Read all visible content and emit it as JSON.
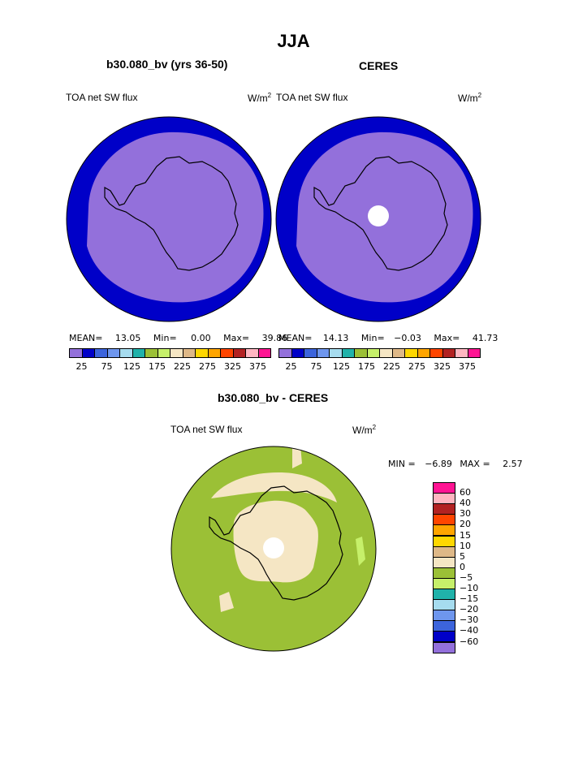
{
  "title": "JJA",
  "left_panel": {
    "case_title": "b30.080_bv (yrs 36-50)",
    "var_label": "TOA net SW flux",
    "unit_base": "W/m",
    "unit_exp": "2",
    "mean_label": "MEAN=",
    "mean_value": "13.05",
    "min_label": "Min=",
    "min_value": "0.00",
    "max_label": "Max=",
    "max_value": "39.86"
  },
  "right_panel": {
    "case_title": "CERES",
    "var_label": "TOA net SW flux",
    "unit_base": "W/m",
    "unit_exp": "2",
    "mean_label": "MEAN=",
    "mean_value": "14.13",
    "min_label": "Min=",
    "min_value": "−0.03",
    "max_label": "Max=",
    "max_value": "41.73"
  },
  "diff_panel": {
    "case_title": "b30.080_bv - CERES",
    "var_label": "TOA net SW flux",
    "unit_base": "W/m",
    "unit_exp": "2",
    "min_label": "MIN =",
    "min_value": "−6.89",
    "max_label": "MAX =",
    "max_value": "2.57"
  },
  "colors": {
    "outer_ring": "#0000c8",
    "interior": "#9370db",
    "diff_green": "#9bc036",
    "diff_tan": "#f5e6c4",
    "diff_light_green": "#c6f06a",
    "coast": "#000000"
  },
  "chart_data": [
    {
      "type": "heatmap",
      "title": "TOA net SW flux",
      "projection": "south-polar-stereographic",
      "colorbar": {
        "orientation": "horizontal",
        "colors": [
          "#9370db",
          "#0000c8",
          "#3c64dc",
          "#6e96ee",
          "#a6dcef",
          "#20b2aa",
          "#9bc036",
          "#c6f06a",
          "#f5e6c4",
          "#deb887",
          "#ffd700",
          "#ffa500",
          "#ff4500",
          "#b22222",
          "#ffb6c1",
          "#ff1493"
        ],
        "tick_labels": [
          "25",
          "75",
          "125",
          "175",
          "225",
          "275",
          "325",
          "375"
        ]
      },
      "stats": {
        "mean": 13.05,
        "min": 0.0,
        "max": 39.86
      }
    },
    {
      "type": "heatmap",
      "title": "TOA net SW flux",
      "projection": "south-polar-stereographic",
      "colorbar": {
        "orientation": "horizontal",
        "colors": [
          "#9370db",
          "#0000c8",
          "#3c64dc",
          "#6e96ee",
          "#a6dcef",
          "#20b2aa",
          "#9bc036",
          "#c6f06a",
          "#f5e6c4",
          "#deb887",
          "#ffd700",
          "#ffa500",
          "#ff4500",
          "#b22222",
          "#ffb6c1",
          "#ff1493"
        ],
        "tick_labels": [
          "25",
          "75",
          "125",
          "175",
          "225",
          "275",
          "325",
          "375"
        ]
      },
      "stats": {
        "mean": 14.13,
        "min": -0.03,
        "max": 41.73
      }
    },
    {
      "type": "heatmap",
      "title": "TOA net SW flux",
      "projection": "south-polar-stereographic",
      "colorbar": {
        "orientation": "vertical",
        "colors_top_to_bottom": [
          "#ff1493",
          "#ffb6c1",
          "#b22222",
          "#ff4500",
          "#ffa500",
          "#ffd700",
          "#deb887",
          "#f5e6c4",
          "#9bc036",
          "#c6f06a",
          "#20b2aa",
          "#a6dcef",
          "#6e96ee",
          "#3c64dc",
          "#0000c8",
          "#9370db"
        ],
        "tick_labels_top_to_bottom": [
          "60",
          "40",
          "30",
          "20",
          "15",
          "10",
          "5",
          "0",
          "−5",
          "−10",
          "−15",
          "−20",
          "−30",
          "−40",
          "−60"
        ]
      },
      "stats": {
        "min": -6.89,
        "max": 2.57
      }
    }
  ]
}
